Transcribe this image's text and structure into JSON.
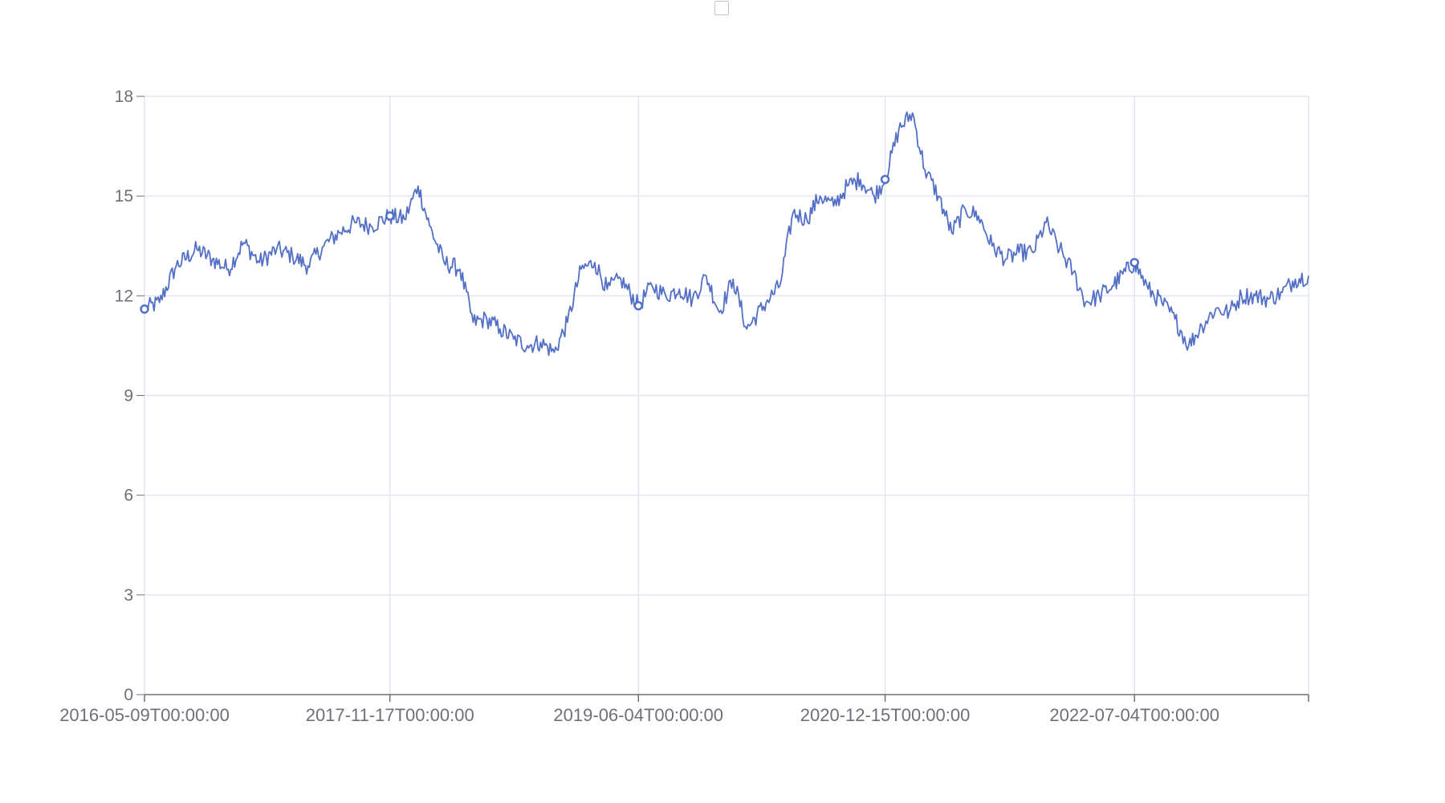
{
  "chart_data": {
    "type": "line",
    "title": "",
    "xlabel": "",
    "ylabel": "",
    "ylim": [
      0,
      18
    ],
    "y_ticks": [
      "0",
      "3",
      "6",
      "9",
      "12",
      "15",
      "18"
    ],
    "x_ticks": [
      "2016-05-09T00:00:00",
      "2017-11-17T00:00:00",
      "2019-06-04T00:00:00",
      "2020-12-15T00:00:00",
      "2022-07-04T00:00:00"
    ],
    "x_range": [
      "2016-05-09",
      "2023-08-03"
    ],
    "grid": true,
    "legend": "top-center",
    "series": [
      {
        "color": "#5470c6",
        "x": [
          "2016-05-09",
          "2016-06-12",
          "2016-07-20",
          "2016-09-05",
          "2016-10-10",
          "2016-11-15",
          "2016-12-20",
          "2017-01-25",
          "2017-03-05",
          "2017-04-10",
          "2017-05-15",
          "2017-06-20",
          "2017-07-25",
          "2017-08-30",
          "2017-10-05",
          "2017-11-17",
          "2017-12-20",
          "2018-01-20",
          "2018-02-15",
          "2018-03-20",
          "2018-04-25",
          "2018-05-25",
          "2018-06-25",
          "2018-07-25",
          "2018-08-25",
          "2018-09-25",
          "2018-10-25",
          "2018-11-25",
          "2018-12-25",
          "2019-01-25",
          "2019-02-25",
          "2019-03-25",
          "2019-04-25",
          "2019-06-04",
          "2019-07-05",
          "2019-08-05",
          "2019-09-05",
          "2019-10-05",
          "2019-11-05",
          "2019-12-05",
          "2020-01-05",
          "2020-02-05",
          "2020-03-20",
          "2020-04-20",
          "2020-05-20",
          "2020-06-20",
          "2020-07-20",
          "2020-08-20",
          "2020-09-20",
          "2020-10-20",
          "2020-11-20",
          "2020-12-15",
          "2021-01-15",
          "2021-02-15",
          "2021-03-15",
          "2021-04-15",
          "2021-05-15",
          "2021-06-15",
          "2021-07-15",
          "2021-08-15",
          "2021-09-15",
          "2021-10-15",
          "2021-11-15",
          "2021-12-15",
          "2022-01-15",
          "2022-02-15",
          "2022-03-15",
          "2022-04-15",
          "2022-05-15",
          "2022-07-04",
          "2022-08-04",
          "2022-09-04",
          "2022-10-04",
          "2022-11-04",
          "2022-12-04",
          "2023-01-04",
          "2023-02-04",
          "2023-03-04",
          "2023-04-04",
          "2023-05-04",
          "2023-06-04",
          "2023-07-04",
          "2023-08-03"
        ],
        "y": [
          11.6,
          11.8,
          12.9,
          13.4,
          13.1,
          12.8,
          13.6,
          13.0,
          13.4,
          13.2,
          12.9,
          13.5,
          13.9,
          14.2,
          14.1,
          14.4,
          14.3,
          15.3,
          14.1,
          13.0,
          12.8,
          11.2,
          11.3,
          11.0,
          10.7,
          10.5,
          10.6,
          10.3,
          11.2,
          12.8,
          13.0,
          12.2,
          12.5,
          11.7,
          12.3,
          12.0,
          12.2,
          11.9,
          12.6,
          11.5,
          12.5,
          11.0,
          11.8,
          12.3,
          14.5,
          14.3,
          15.0,
          14.7,
          15.3,
          15.5,
          15.0,
          15.5,
          17.0,
          17.5,
          15.8,
          15.0,
          13.9,
          14.6,
          14.4,
          13.5,
          13.1,
          13.3,
          13.3,
          14.2,
          13.4,
          12.7,
          11.8,
          12.0,
          12.3,
          13.0,
          12.2,
          11.8,
          11.3,
          10.5,
          11.1,
          11.6,
          11.5,
          12.0,
          12.0,
          11.9,
          12.1,
          12.5,
          12.6
        ]
      }
    ],
    "markers": [
      {
        "x": "2016-05-09",
        "y": 11.6
      },
      {
        "x": "2017-11-17",
        "y": 14.4
      },
      {
        "x": "2019-06-04",
        "y": 11.7
      },
      {
        "x": "2020-12-15",
        "y": 15.5
      },
      {
        "x": "2022-07-04",
        "y": 13.0
      }
    ]
  }
}
